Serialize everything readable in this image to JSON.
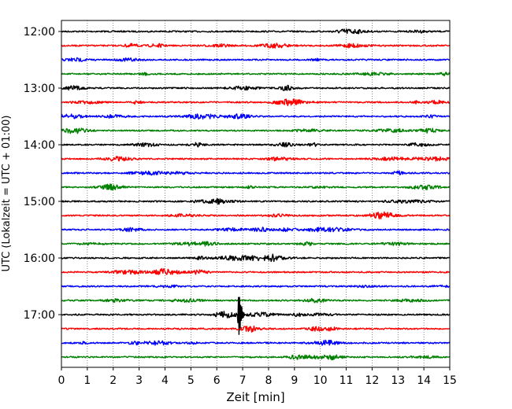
{
  "chart_data": {
    "type": "line",
    "subtype": "seismic-helicorder",
    "title": "",
    "xlabel": "Zeit  [min]",
    "ylabel": "UTC (Lokalzeit = UTC + 01:00)",
    "xlim": [
      0,
      15
    ],
    "x_ticks": [
      "0",
      "1",
      "2",
      "3",
      "4",
      "5",
      "6",
      "7",
      "8",
      "9",
      "10",
      "11",
      "12",
      "13",
      "14",
      "15"
    ],
    "y_ticks": [
      "12:00",
      "13:00",
      "14:00",
      "15:00",
      "16:00",
      "17:00"
    ],
    "grid": "vertical-dotted",
    "trace_interval_minutes": 15,
    "start_time": "12:00",
    "trace_count": 24,
    "trace_colors": [
      "#000000",
      "#ff0000",
      "#0000ff",
      "#008000"
    ],
    "event": {
      "trace_index": 20,
      "time_min": 6.85
    }
  }
}
